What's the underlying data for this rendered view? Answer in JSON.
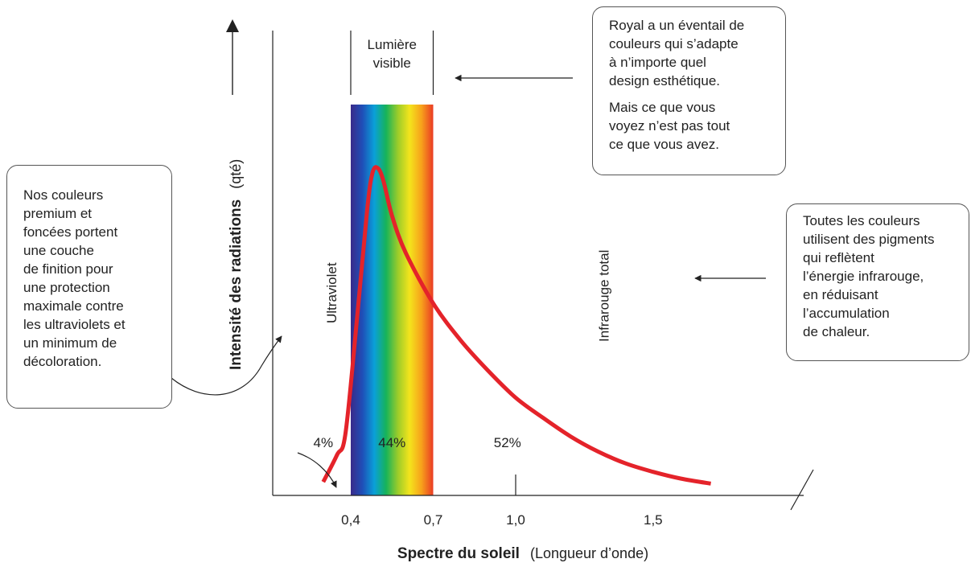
{
  "chart_data": {
    "type": "line",
    "title": "",
    "xlabel_bold": "Spectre du soleil",
    "xlabel_rest": "(Longueur d’onde)",
    "ylabel_bold": "Intensité des radiations",
    "ylabel_rest": "(qté)",
    "x_ticks": [
      {
        "value": 0.4,
        "label": "0,4"
      },
      {
        "value": 0.7,
        "label": "0,7"
      },
      {
        "value": 1.0,
        "label": "1,0"
      },
      {
        "value": 1.5,
        "label": "1,5"
      }
    ],
    "x_range": [
      0.27,
      1.78
    ],
    "y_range": [
      0,
      100
    ],
    "series": [
      {
        "color": "#e4232a",
        "points": [
          [
            0.3,
            4
          ],
          [
            0.35,
            12
          ],
          [
            0.38,
            18
          ],
          [
            0.42,
            50
          ],
          [
            0.46,
            85
          ],
          [
            0.48,
            96
          ],
          [
            0.5,
            97
          ],
          [
            0.52,
            93
          ],
          [
            0.55,
            83
          ],
          [
            0.6,
            72
          ],
          [
            0.7,
            57
          ],
          [
            0.8,
            46
          ],
          [
            0.9,
            37
          ],
          [
            1.0,
            29
          ],
          [
            1.1,
            23
          ],
          [
            1.2,
            17.5
          ],
          [
            1.3,
            13
          ],
          [
            1.4,
            9.5
          ],
          [
            1.5,
            7
          ],
          [
            1.6,
            5
          ],
          [
            1.71,
            3.5
          ]
        ]
      }
    ],
    "visible_band": {
      "from": 0.4,
      "to": 0.7,
      "label_lines": [
        "Lumière",
        "visible"
      ]
    },
    "region_labels": [
      {
        "text": "Ultraviolet",
        "x": 0.33
      },
      {
        "text": "Infrarouge total",
        "x": 1.32
      }
    ],
    "percent_labels": [
      {
        "text": "4%",
        "x": 0.3
      },
      {
        "text": "44%",
        "x": 0.55
      },
      {
        "text": "52%",
        "x": 0.97
      }
    ]
  },
  "callouts": {
    "left": {
      "lines": [
        "Nos couleurs",
        "premium et",
        "foncées portent",
        "une couche",
        "de finition pour",
        "une protection",
        "maximale contre",
        "les ultraviolets et",
        "un minimum de",
        "décoloration."
      ]
    },
    "top": {
      "paragraph1": [
        "Royal a un éventail de",
        "couleurs qui s’adapte",
        "à n’importe quel",
        "design esthétique."
      ],
      "paragraph2": [
        "Mais ce que vous",
        "voyez n’est pas tout",
        "ce que vous avez."
      ]
    },
    "right": {
      "lines": [
        "Toutes les couleurs",
        "utilisent des pigments",
        "qui reflètent",
        "l’énergie infrarouge,",
        "en réduisant",
        "l’accumulation",
        "de chaleur."
      ]
    }
  },
  "colors": {
    "curve": "#e4232a",
    "axis": "#222222",
    "spectrum": [
      "#3a2a8a",
      "#1f4fb8",
      "#0aa0d8",
      "#16b35a",
      "#9bcc2a",
      "#f4e41c",
      "#f7a21b",
      "#ea3b24"
    ]
  }
}
